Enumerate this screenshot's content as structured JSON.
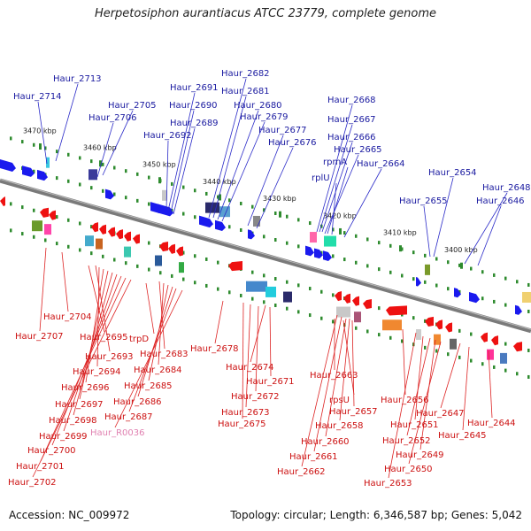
{
  "title": "Herpetosiphon aurantiacus ATCC 23779, complete genome",
  "footer": {
    "accession": "Accession: NC_009972",
    "stats": "Topology: circular; Length: 6,346,587 bp; Genes: 5,042"
  },
  "colors": {
    "forward_gene": "#1a1aee",
    "reverse_gene": "#ee1111",
    "forward_label": "#1a1aa0",
    "reverse_label": "#cc1111",
    "rna_label": "#e080b0",
    "backbone": "#7a7a7a",
    "tick": "#2e8b2e"
  },
  "ticks": [
    "3470 kbp",
    "3460 kbp",
    "3450 kbp",
    "3440 kbp",
    "3430 kbp",
    "3420 kbp",
    "3410 kbp",
    "3400 kbp"
  ],
  "forward_labels": [
    "Haur_2714",
    "Haur_2713",
    "Haur_2706",
    "Haur_2705",
    "Haur_2691",
    "Haur_2690",
    "Haur_2689",
    "Haur_2692",
    "Haur_2682",
    "Haur_2681",
    "Haur_2680",
    "Haur_2679",
    "Haur_2677",
    "Haur_2676",
    "Haur_2668",
    "Haur_2667",
    "Haur_2666",
    "Haur_2665",
    "rpmA",
    "rplU",
    "Haur_2664",
    "Haur_2654",
    "Haur_2655",
    "Haur_2648",
    "Haur_2646"
  ],
  "reverse_labels": [
    "Haur_2704",
    "Haur_2707",
    "Haur_2695",
    "trpD",
    "Haur_2693",
    "Haur_2694",
    "Haur_2696",
    "Haur_2697",
    "Haur_2698",
    "Haur_2699",
    "Haur_2700",
    "Haur_2701",
    "Haur_2702",
    "Haur_2683",
    "Haur_2684",
    "Haur_2685",
    "Haur_2686",
    "Haur_2687",
    "Haur_R0036",
    "Haur_2678",
    "Haur_2674",
    "Haur_2671",
    "Haur_2672",
    "Haur_2673",
    "Haur_2675",
    "Haur_2663",
    "rpsU",
    "Haur_2657",
    "Haur_2658",
    "Haur_2660",
    "Haur_2661",
    "Haur_2662",
    "Haur_2656",
    "Haur_2651",
    "Haur_2652",
    "Haur_2649",
    "Haur_2650",
    "Haur_2653",
    "Haur_2647",
    "Haur_2645",
    "Haur_2644"
  ]
}
